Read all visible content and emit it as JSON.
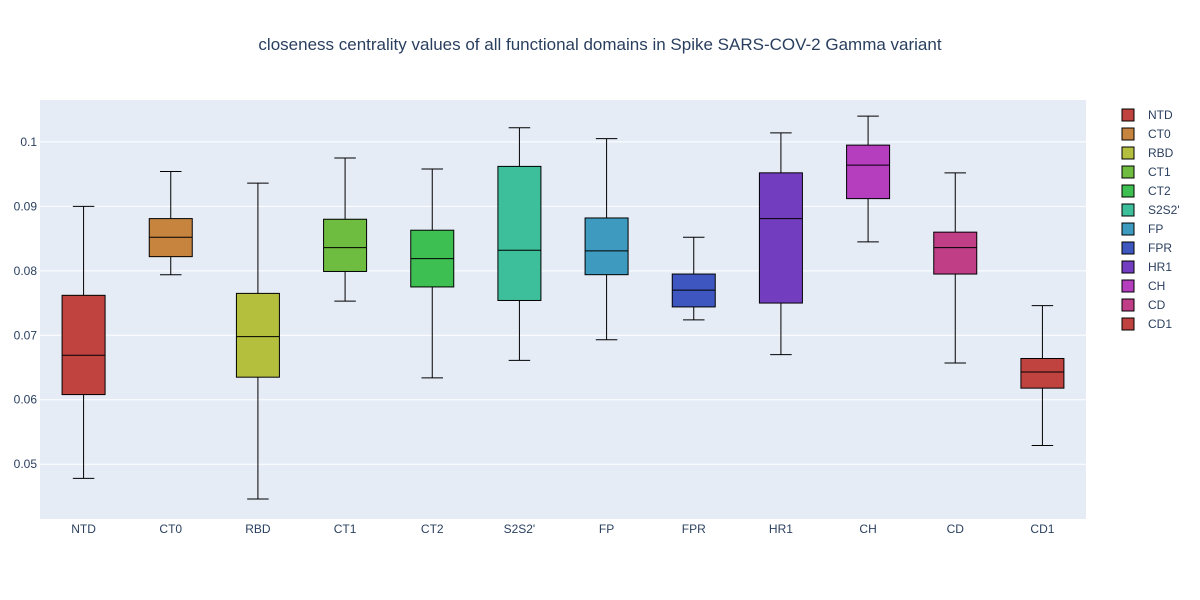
{
  "chart_data": {
    "type": "box",
    "title": "closeness centrality values of all functional domains in Spike SARS-COV-2 Gamma variant",
    "xlabel": "",
    "ylabel": "",
    "ylim": [
      0.0415,
      0.1065
    ],
    "yticks": [
      0.05,
      0.06,
      0.07,
      0.08,
      0.09,
      0.1
    ],
    "ytick_labels": [
      "0.05",
      "0.06",
      "0.07",
      "0.08",
      "0.09",
      "0.1"
    ],
    "grid": true,
    "legend_position": "right",
    "categories": [
      "NTD",
      "CT0",
      "RBD",
      "CT1",
      "CT2",
      "S2S2'",
      "FP",
      "FPR",
      "HR1",
      "CH",
      "CD",
      "CD1"
    ],
    "series": [
      {
        "name": "NTD",
        "color": "#c04340",
        "min": 0.0478,
        "q1": 0.0608,
        "median": 0.0669,
        "q3": 0.0762,
        "max": 0.09
      },
      {
        "name": "CT0",
        "color": "#c6843e",
        "min": 0.0794,
        "q1": 0.0822,
        "median": 0.0852,
        "q3": 0.0881,
        "max": 0.0954
      },
      {
        "name": "RBD",
        "color": "#b5bf3e",
        "min": 0.0446,
        "q1": 0.0635,
        "median": 0.0698,
        "q3": 0.0765,
        "max": 0.0936
      },
      {
        "name": "CT1",
        "color": "#6fbd40",
        "min": 0.0753,
        "q1": 0.0799,
        "median": 0.0836,
        "q3": 0.088,
        "max": 0.0975
      },
      {
        "name": "CT2",
        "color": "#3ebf52",
        "min": 0.0634,
        "q1": 0.0775,
        "median": 0.0819,
        "q3": 0.0863,
        "max": 0.0958
      },
      {
        "name": "S2S2'",
        "color": "#3ebf9b",
        "min": 0.0661,
        "q1": 0.0754,
        "median": 0.0832,
        "q3": 0.0962,
        "max": 0.1022
      },
      {
        "name": "FP",
        "color": "#3e9bbf",
        "min": 0.0693,
        "q1": 0.0794,
        "median": 0.0831,
        "q3": 0.0882,
        "max": 0.1005
      },
      {
        "name": "FPR",
        "color": "#3e56bf",
        "min": 0.0724,
        "q1": 0.0744,
        "median": 0.077,
        "q3": 0.0795,
        "max": 0.0852
      },
      {
        "name": "HR1",
        "color": "#723ebf",
        "min": 0.067,
        "q1": 0.075,
        "median": 0.0881,
        "q3": 0.0952,
        "max": 0.1014
      },
      {
        "name": "CH",
        "color": "#b53ebf",
        "min": 0.0845,
        "q1": 0.0912,
        "median": 0.0964,
        "q3": 0.0995,
        "max": 0.104
      },
      {
        "name": "CD",
        "color": "#bf3e85",
        "min": 0.0657,
        "q1": 0.0795,
        "median": 0.0836,
        "q3": 0.086,
        "max": 0.0952
      },
      {
        "name": "CD1",
        "color": "#c04340",
        "min": 0.0529,
        "q1": 0.0618,
        "median": 0.0643,
        "q3": 0.0664,
        "max": 0.0746
      }
    ]
  }
}
